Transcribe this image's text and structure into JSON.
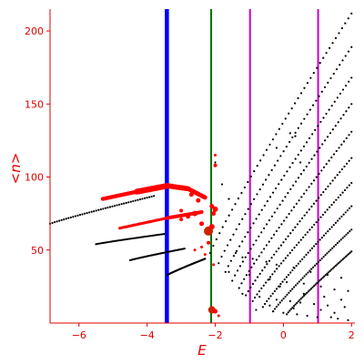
{
  "chart_data": {
    "type": "scatter",
    "xlabel": "E",
    "ylabel": "<n>",
    "xlim": [
      -6.85,
      2.1
    ],
    "ylim": [
      0,
      215
    ],
    "x_ticks": [
      -6,
      -4,
      -2,
      0,
      2
    ],
    "y_ticks": [
      50,
      100,
      150,
      200
    ],
    "axis_color": "#e00000",
    "vertical_lines": [
      {
        "x": -3.42,
        "color": "#0000ff",
        "width": "thick"
      },
      {
        "x": -2.12,
        "color": "#007000",
        "width": "normal"
      },
      {
        "x": -0.98,
        "color": "#cc00cc",
        "width": "normal"
      },
      {
        "x": 1.02,
        "color": "#cc00cc",
        "width": "normal"
      }
    ],
    "black_bands": [
      {
        "x0": -6.85,
        "y0": 68,
        "x1": -3.8,
        "y1": 87
      },
      {
        "x0": -5.5,
        "y0": 54,
        "x1": -3.5,
        "y1": 61
      },
      {
        "x0": -4.5,
        "y0": 43,
        "x1": -2.9,
        "y1": 51
      },
      {
        "x0": -3.4,
        "y0": 33,
        "x1": -2.3,
        "y1": 44
      },
      {
        "x0": -2.15,
        "y0": 48,
        "x1": 2.0,
        "y1": 212
      },
      {
        "x0": -1.9,
        "y0": 41,
        "x1": 2.0,
        "y1": 189
      },
      {
        "x0": -1.7,
        "y0": 35,
        "x1": 2.0,
        "y1": 168
      },
      {
        "x0": -1.5,
        "y0": 29,
        "x1": 2.0,
        "y1": 150
      },
      {
        "x0": -1.3,
        "y0": 24,
        "x1": 2.0,
        "y1": 131
      },
      {
        "x0": -1.1,
        "y0": 19,
        "x1": 2.0,
        "y1": 113
      },
      {
        "x0": -0.9,
        "y0": 15,
        "x1": 2.0,
        "y1": 96
      },
      {
        "x0": -0.6,
        "y0": 11,
        "x1": 2.0,
        "y1": 80
      },
      {
        "x0": -0.3,
        "y0": 8,
        "x1": 2.0,
        "y1": 64
      },
      {
        "x0": 0.1,
        "y0": 6,
        "x1": 2.0,
        "y1": 49
      }
    ],
    "black_scatter": [
      [
        -1.4,
        48
      ],
      [
        -1.2,
        45
      ],
      [
        -0.9,
        44
      ],
      [
        -0.5,
        42
      ],
      [
        -0.2,
        40
      ],
      [
        0.3,
        38
      ],
      [
        0.8,
        35
      ],
      [
        1.3,
        33
      ],
      [
        1.7,
        31
      ],
      [
        -1.6,
        35
      ],
      [
        -1.0,
        33
      ],
      [
        -0.4,
        30
      ],
      [
        0.1,
        28
      ],
      [
        0.6,
        27
      ],
      [
        1.1,
        25
      ],
      [
        1.5,
        23
      ],
      [
        1.9,
        22
      ],
      [
        -1.2,
        20
      ],
      [
        -0.7,
        18
      ],
      [
        -0.2,
        16
      ],
      [
        0.2,
        15
      ],
      [
        0.5,
        14
      ],
      [
        0.9,
        13
      ],
      [
        1.3,
        12
      ],
      [
        1.8,
        11
      ],
      [
        -0.8,
        9
      ],
      [
        -0.3,
        8
      ],
      [
        0.0,
        7
      ],
      [
        0.4,
        6
      ],
      [
        0.7,
        5
      ],
      [
        1.0,
        4
      ],
      [
        1.4,
        4
      ],
      [
        1.6,
        3
      ],
      [
        1.9,
        2
      ],
      [
        -0.1,
        25
      ],
      [
        0.6,
        20
      ],
      [
        1.2,
        18
      ],
      [
        1.7,
        16
      ],
      [
        -0.4,
        12
      ],
      [
        0.3,
        10
      ],
      [
        1.1,
        9
      ],
      [
        1.5,
        7
      ],
      [
        0.2,
        130
      ],
      [
        0.35,
        128
      ],
      [
        -0.2,
        120
      ],
      [
        0.5,
        110
      ],
      [
        -1.6,
        85
      ],
      [
        -1.8,
        95
      ],
      [
        -2.0,
        110
      ]
    ],
    "red_bands": [
      {
        "x0": -5.3,
        "y0": 85,
        "x1": -4.3,
        "y1": 90,
        "size": 2.2
      },
      {
        "x0": -4.3,
        "y0": 90,
        "x1": -3.4,
        "y1": 94,
        "size": 3.2
      },
      {
        "x0": -3.4,
        "y0": 94,
        "x1": -2.8,
        "y1": 92,
        "size": 2.8
      },
      {
        "x0": -2.8,
        "y0": 92,
        "x1": -2.3,
        "y1": 86,
        "size": 2.4
      },
      {
        "x0": -4.8,
        "y0": 65,
        "x1": -3.4,
        "y1": 72,
        "size": 1.6
      },
      {
        "x0": -3.4,
        "y0": 72,
        "x1": -2.4,
        "y1": 76,
        "size": 2.0
      }
    ],
    "red_points": [
      [
        -2.6,
        75,
        3
      ],
      [
        -2.8,
        73,
        2.5
      ],
      [
        -3.0,
        71,
        2
      ],
      [
        -2.4,
        68,
        2.5
      ],
      [
        -2.2,
        63,
        5
      ],
      [
        -2.1,
        66,
        3
      ],
      [
        -2.05,
        75,
        2.5
      ],
      [
        -2.0,
        78,
        3
      ],
      [
        -2.1,
        80,
        2.5
      ],
      [
        -2.0,
        108,
        2
      ],
      [
        -2.0,
        115,
        1.5
      ],
      [
        -2.2,
        55,
        2
      ],
      [
        -2.4,
        52,
        1.5
      ],
      [
        -2.6,
        50,
        1.5
      ],
      [
        -2.3,
        47,
        1.5
      ],
      [
        -2.1,
        9,
        4
      ],
      [
        -2.0,
        8,
        2.5
      ],
      [
        -1.9,
        5,
        1.5
      ],
      [
        -2.05,
        40,
        1.5
      ],
      [
        -2.5,
        84,
        2.5
      ],
      [
        -2.7,
        88,
        2.5
      ],
      [
        -3.0,
        77,
        2
      ]
    ]
  }
}
